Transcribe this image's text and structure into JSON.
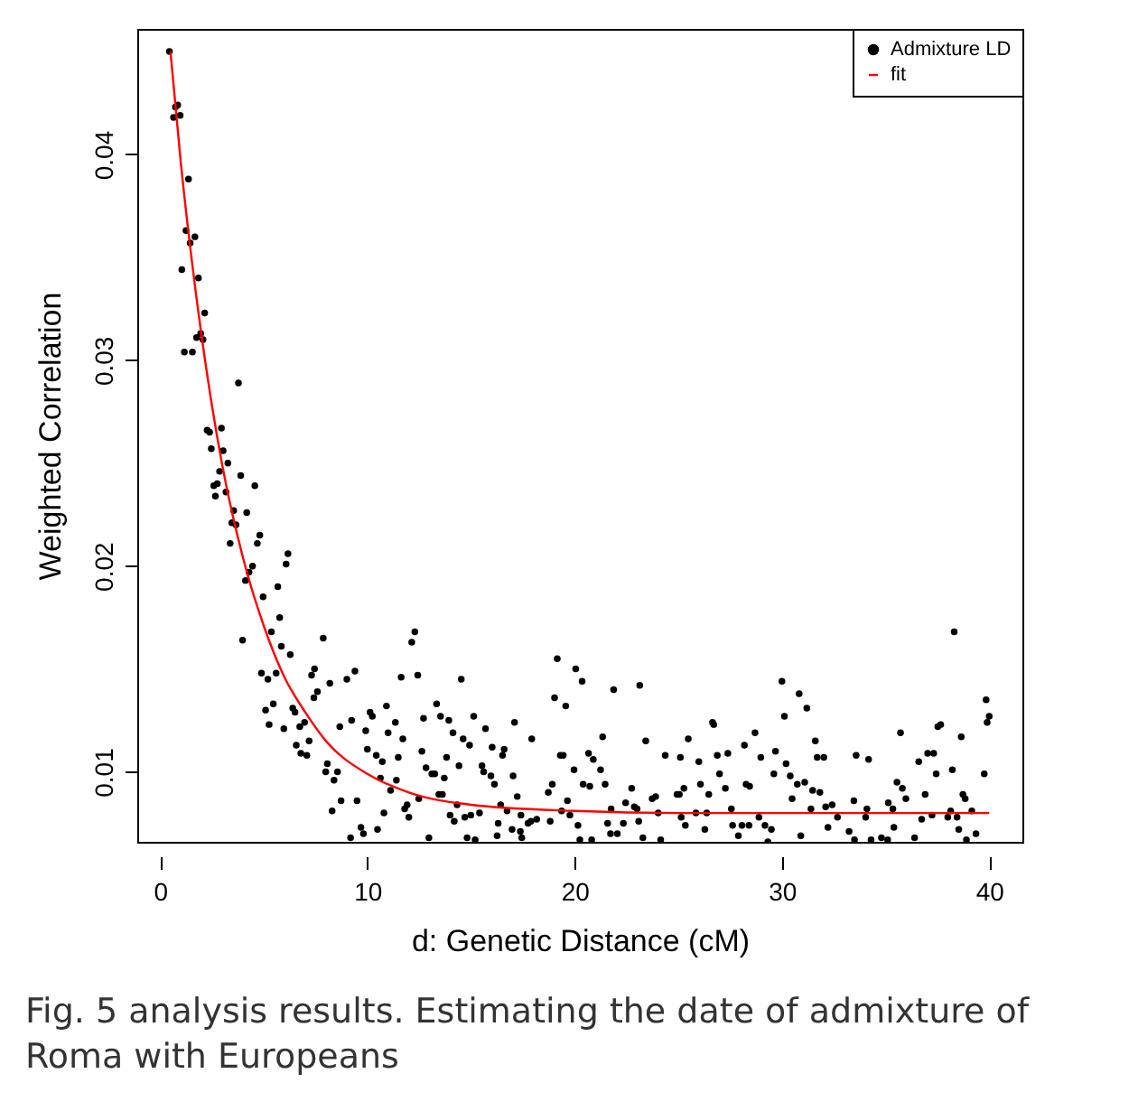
{
  "chart_data": {
    "type": "scatter",
    "xlabel": "d: Genetic Distance (cM)",
    "ylabel": "Weighted Correlation",
    "xlim": [
      -1.1,
      41.6
    ],
    "ylim": [
      0.0066,
      0.0461
    ],
    "xticks": [
      0,
      10,
      20,
      30,
      40
    ],
    "yticks": [
      0.01,
      0.02,
      0.03,
      0.04
    ],
    "grid": false,
    "legend": "top right",
    "marker": "circle",
    "annotations": [
      "Fig. 5 analysis results. Estimating the date of admixture of Roma with Europeans"
    ],
    "series": [
      {
        "name": "Admixture LD",
        "color": "#000000",
        "x": [
          0.45,
          0.74,
          0.85,
          0.65,
          0.97,
          1.37,
          1.25,
          1.68,
          1.45,
          1.05,
          1.85,
          2.15,
          1.96,
          1.76,
          2.07,
          1.17,
          1.56,
          3.78,
          2.27,
          2.39,
          2.96,
          2.47,
          3.04,
          3.27,
          2.87,
          2.59,
          2.76,
          2.67,
          3.18,
          3.89,
          4.57,
          3.55,
          4.18,
          3.46,
          3.66,
          3.38,
          4.81,
          4.69,
          6.17,
          6.08,
          4.46,
          4.29,
          4.12,
          4.97,
          5.68,
          5.77,
          5.37,
          3.98,
          5.85,
          6.28,
          7.87,
          4.89,
          5.2,
          5.6,
          7.45,
          7.31,
          8.19,
          9.01,
          9.4,
          7.42,
          7.59,
          5.09,
          5.46,
          6.4,
          6.51,
          5.26,
          5.97,
          6.74,
          6.97,
          6.57,
          6.79,
          7.08,
          7.19,
          8.67,
          9.24,
          10.13,
          10.24,
          10.92,
          9.92,
          11.0,
          11.35,
          11.63,
          11.71,
          10.0,
          10.43,
          10.72,
          11.49,
          8.07,
          7.99,
          8.56,
          8.39,
          10.63,
          11.4,
          11.12,
          8.73,
          9.5,
          8.3,
          10.8,
          11.8,
          9.69,
          10.49,
          9.81,
          9.19,
          12.14,
          12.29,
          12.43,
          12.71,
          12.63,
          12.83,
          13.11,
          13.25,
          12.48,
          11.92,
          12.0,
          12.97,
          13.34,
          13.53,
          13.93,
          14.53,
          15.13,
          14.13,
          14.62,
          14.93,
          13.82,
          13.71,
          14.42,
          13.45,
          13.62,
          14.33,
          13.99,
          14.19,
          14.7,
          14.99,
          15.41,
          14.81,
          15.2,
          15.53,
          15.61,
          15.96,
          16.13,
          15.7,
          16.02,
          16.6,
          16.52,
          17.1,
          17.93,
          17.03,
          17.23,
          16.43,
          16.74,
          16.31,
          16.26,
          17.41,
          17.75,
          17.89,
          18.17,
          17.38,
          16.98,
          17.45,
          18.82,
          18.73,
          18.92,
          19.03,
          19.16,
          19.31,
          19.45,
          19.57,
          20.05,
          20.36,
          19.97,
          19.65,
          19.37,
          19.77,
          20.16,
          20.25,
          20.82,
          20.41,
          20.67,
          20.73,
          20.9,
          21.25,
          21.47,
          21.35,
          21.88,
          21.76,
          21.59,
          21.73,
          22.06,
          22.35,
          22.46,
          22.75,
          22.88,
          23.01,
          23.09,
          23.14,
          23.43,
          23.29,
          23.74,
          23.91,
          24.03,
          24.15,
          24.37,
          24.94,
          25.05,
          25.1,
          25.27,
          25.48,
          25.14,
          25.34,
          25.99,
          26.07,
          26.28,
          26.37,
          26.47,
          26.65,
          38.31,
          30.0,
          30.83,
          31.2,
          30.12,
          26.71,
          28.7,
          28.19,
          27.39,
          26.88,
          28.98,
          29.69,
          30.2,
          29.61,
          30.4,
          30.74,
          31.1,
          31.61,
          31.7,
          32.02,
          31.48,
          31.83,
          26.99,
          27.27,
          27.56,
          28.27,
          28.44,
          30.49,
          31.4,
          32.11,
          32.42,
          32.68,
          32.22,
          33.24,
          33.58,
          34.18,
          33.47,
          34.04,
          34.1,
          35.13,
          35.35,
          35.55,
          35.72,
          35.81,
          35.98,
          35.4,
          36.4,
          36.6,
          36.91,
          36.74,
          37.03,
          37.32,
          37.44,
          37.24,
          37.52,
          37.66,
          38.22,
          38.65,
          38.0,
          38.14,
          38.45,
          38.53,
          38.73,
          38.84,
          39.16,
          39.36,
          39.76,
          39.85,
          39.9,
          40.0,
          25.85,
          27.62,
          27.9,
          28.07,
          28.41,
          28.89,
          29.18,
          29.49,
          29.32,
          30.91,
          33.5,
          34.3,
          34.8,
          35.1,
          38.9
        ],
        "values": [
          0.045,
          0.0423,
          0.0424,
          0.0418,
          0.0419,
          0.0388,
          0.0363,
          0.036,
          0.0357,
          0.0344,
          0.034,
          0.0323,
          0.0313,
          0.0311,
          0.031,
          0.0304,
          0.0304,
          0.0289,
          0.0266,
          0.0265,
          0.0267,
          0.0257,
          0.0256,
          0.025,
          0.0246,
          0.0239,
          0.024,
          0.0234,
          0.0236,
          0.0244,
          0.0239,
          0.0227,
          0.0226,
          0.0221,
          0.022,
          0.0211,
          0.0215,
          0.0211,
          0.0206,
          0.0201,
          0.02,
          0.0197,
          0.0193,
          0.0185,
          0.019,
          0.0175,
          0.0168,
          0.0164,
          0.0161,
          0.0157,
          0.0165,
          0.0148,
          0.0145,
          0.0148,
          0.015,
          0.0147,
          0.0143,
          0.0145,
          0.0149,
          0.0136,
          0.0139,
          0.013,
          0.0133,
          0.0131,
          0.0129,
          0.0123,
          0.0121,
          0.0122,
          0.0124,
          0.0113,
          0.0109,
          0.0108,
          0.0115,
          0.0122,
          0.0125,
          0.0129,
          0.0127,
          0.0132,
          0.012,
          0.0119,
          0.0124,
          0.0146,
          0.0116,
          0.0111,
          0.0108,
          0.0105,
          0.0107,
          0.0104,
          0.01,
          0.01,
          0.0096,
          0.0097,
          0.0096,
          0.0091,
          0.0086,
          0.0086,
          0.0081,
          0.008,
          0.0082,
          0.0073,
          0.0072,
          0.007,
          0.0068,
          0.0163,
          0.0168,
          0.0147,
          0.0126,
          0.011,
          0.0102,
          0.0099,
          0.0099,
          0.0087,
          0.0084,
          0.0078,
          0.0068,
          0.0133,
          0.0127,
          0.0125,
          0.0145,
          0.0127,
          0.0119,
          0.0116,
          0.0113,
          0.0107,
          0.0097,
          0.0103,
          0.0089,
          0.0089,
          0.0084,
          0.0079,
          0.0076,
          0.0078,
          0.0079,
          0.008,
          0.0068,
          0.0067,
          0.0103,
          0.01,
          0.0098,
          0.0094,
          0.0121,
          0.0112,
          0.0111,
          0.0108,
          0.0124,
          0.0116,
          0.0098,
          0.0088,
          0.0084,
          0.0081,
          0.0075,
          0.0069,
          0.0079,
          0.0075,
          0.0076,
          0.0077,
          0.0071,
          0.0072,
          0.0068,
          0.0076,
          0.009,
          0.0094,
          0.0136,
          0.0155,
          0.0108,
          0.0108,
          0.0132,
          0.015,
          0.0144,
          0.0101,
          0.0086,
          0.0081,
          0.0079,
          0.0074,
          0.0067,
          0.0067,
          0.0094,
          0.0109,
          0.0093,
          0.0106,
          0.0101,
          0.0094,
          0.0117,
          0.014,
          0.0082,
          0.0075,
          0.007,
          0.007,
          0.0075,
          0.0085,
          0.0092,
          0.0083,
          0.0082,
          0.0076,
          0.0142,
          0.0115,
          0.0068,
          0.0087,
          0.0088,
          0.008,
          0.0067,
          0.0108,
          0.0089,
          0.0089,
          0.0107,
          0.0092,
          0.0116,
          0.0078,
          0.0074,
          0.0105,
          0.0094,
          0.0072,
          0.008,
          0.0089,
          0.0124,
          0.0168,
          0.0144,
          0.0138,
          0.0131,
          0.0127,
          0.0123,
          0.0119,
          0.0113,
          0.0109,
          0.0108,
          0.0107,
          0.011,
          0.0104,
          0.0099,
          0.0098,
          0.0094,
          0.0095,
          0.0115,
          0.0107,
          0.0107,
          0.0091,
          0.009,
          0.0099,
          0.0092,
          0.0082,
          0.0094,
          0.0093,
          0.0087,
          0.0082,
          0.0083,
          0.0084,
          0.0078,
          0.0073,
          0.0071,
          0.0108,
          0.0106,
          0.0086,
          0.0078,
          0.0082,
          0.0085,
          0.0082,
          0.0095,
          0.0119,
          0.0092,
          0.0087,
          0.0073,
          0.0068,
          0.0105,
          0.0089,
          0.0077,
          0.0109,
          0.0109,
          0.0099,
          0.0079,
          0.0122,
          0.0123,
          0.0101,
          0.0117,
          0.0078,
          0.0081,
          0.0078,
          0.0072,
          0.0089,
          0.0087,
          0.0081,
          0.007,
          0.0099,
          0.0135,
          0.0124,
          0.0127,
          0.008,
          0.0074,
          0.0069,
          0.0074,
          0.0074,
          0.0078,
          0.0074,
          0.0072,
          0.0066,
          0.0069,
          0.0067,
          0.0067,
          0.0068,
          0.0067,
          0.0067
        ]
      },
      {
        "name": "fit",
        "type": "line",
        "marker": "none",
        "color": "#ff0000",
        "x": [
          0.5,
          1,
          1.5,
          2,
          3,
          4,
          5,
          6,
          7,
          8,
          10,
          12,
          15,
          20,
          25,
          30,
          35,
          40
        ],
        "values": [
          0.045,
          0.0396,
          0.0351,
          0.0312,
          0.0249,
          0.0204,
          0.0171,
          0.0146,
          0.0129,
          0.0115,
          0.0099,
          0.009,
          0.0084,
          0.0081,
          0.008,
          0.008,
          0.008,
          0.008
        ]
      }
    ]
  }
}
